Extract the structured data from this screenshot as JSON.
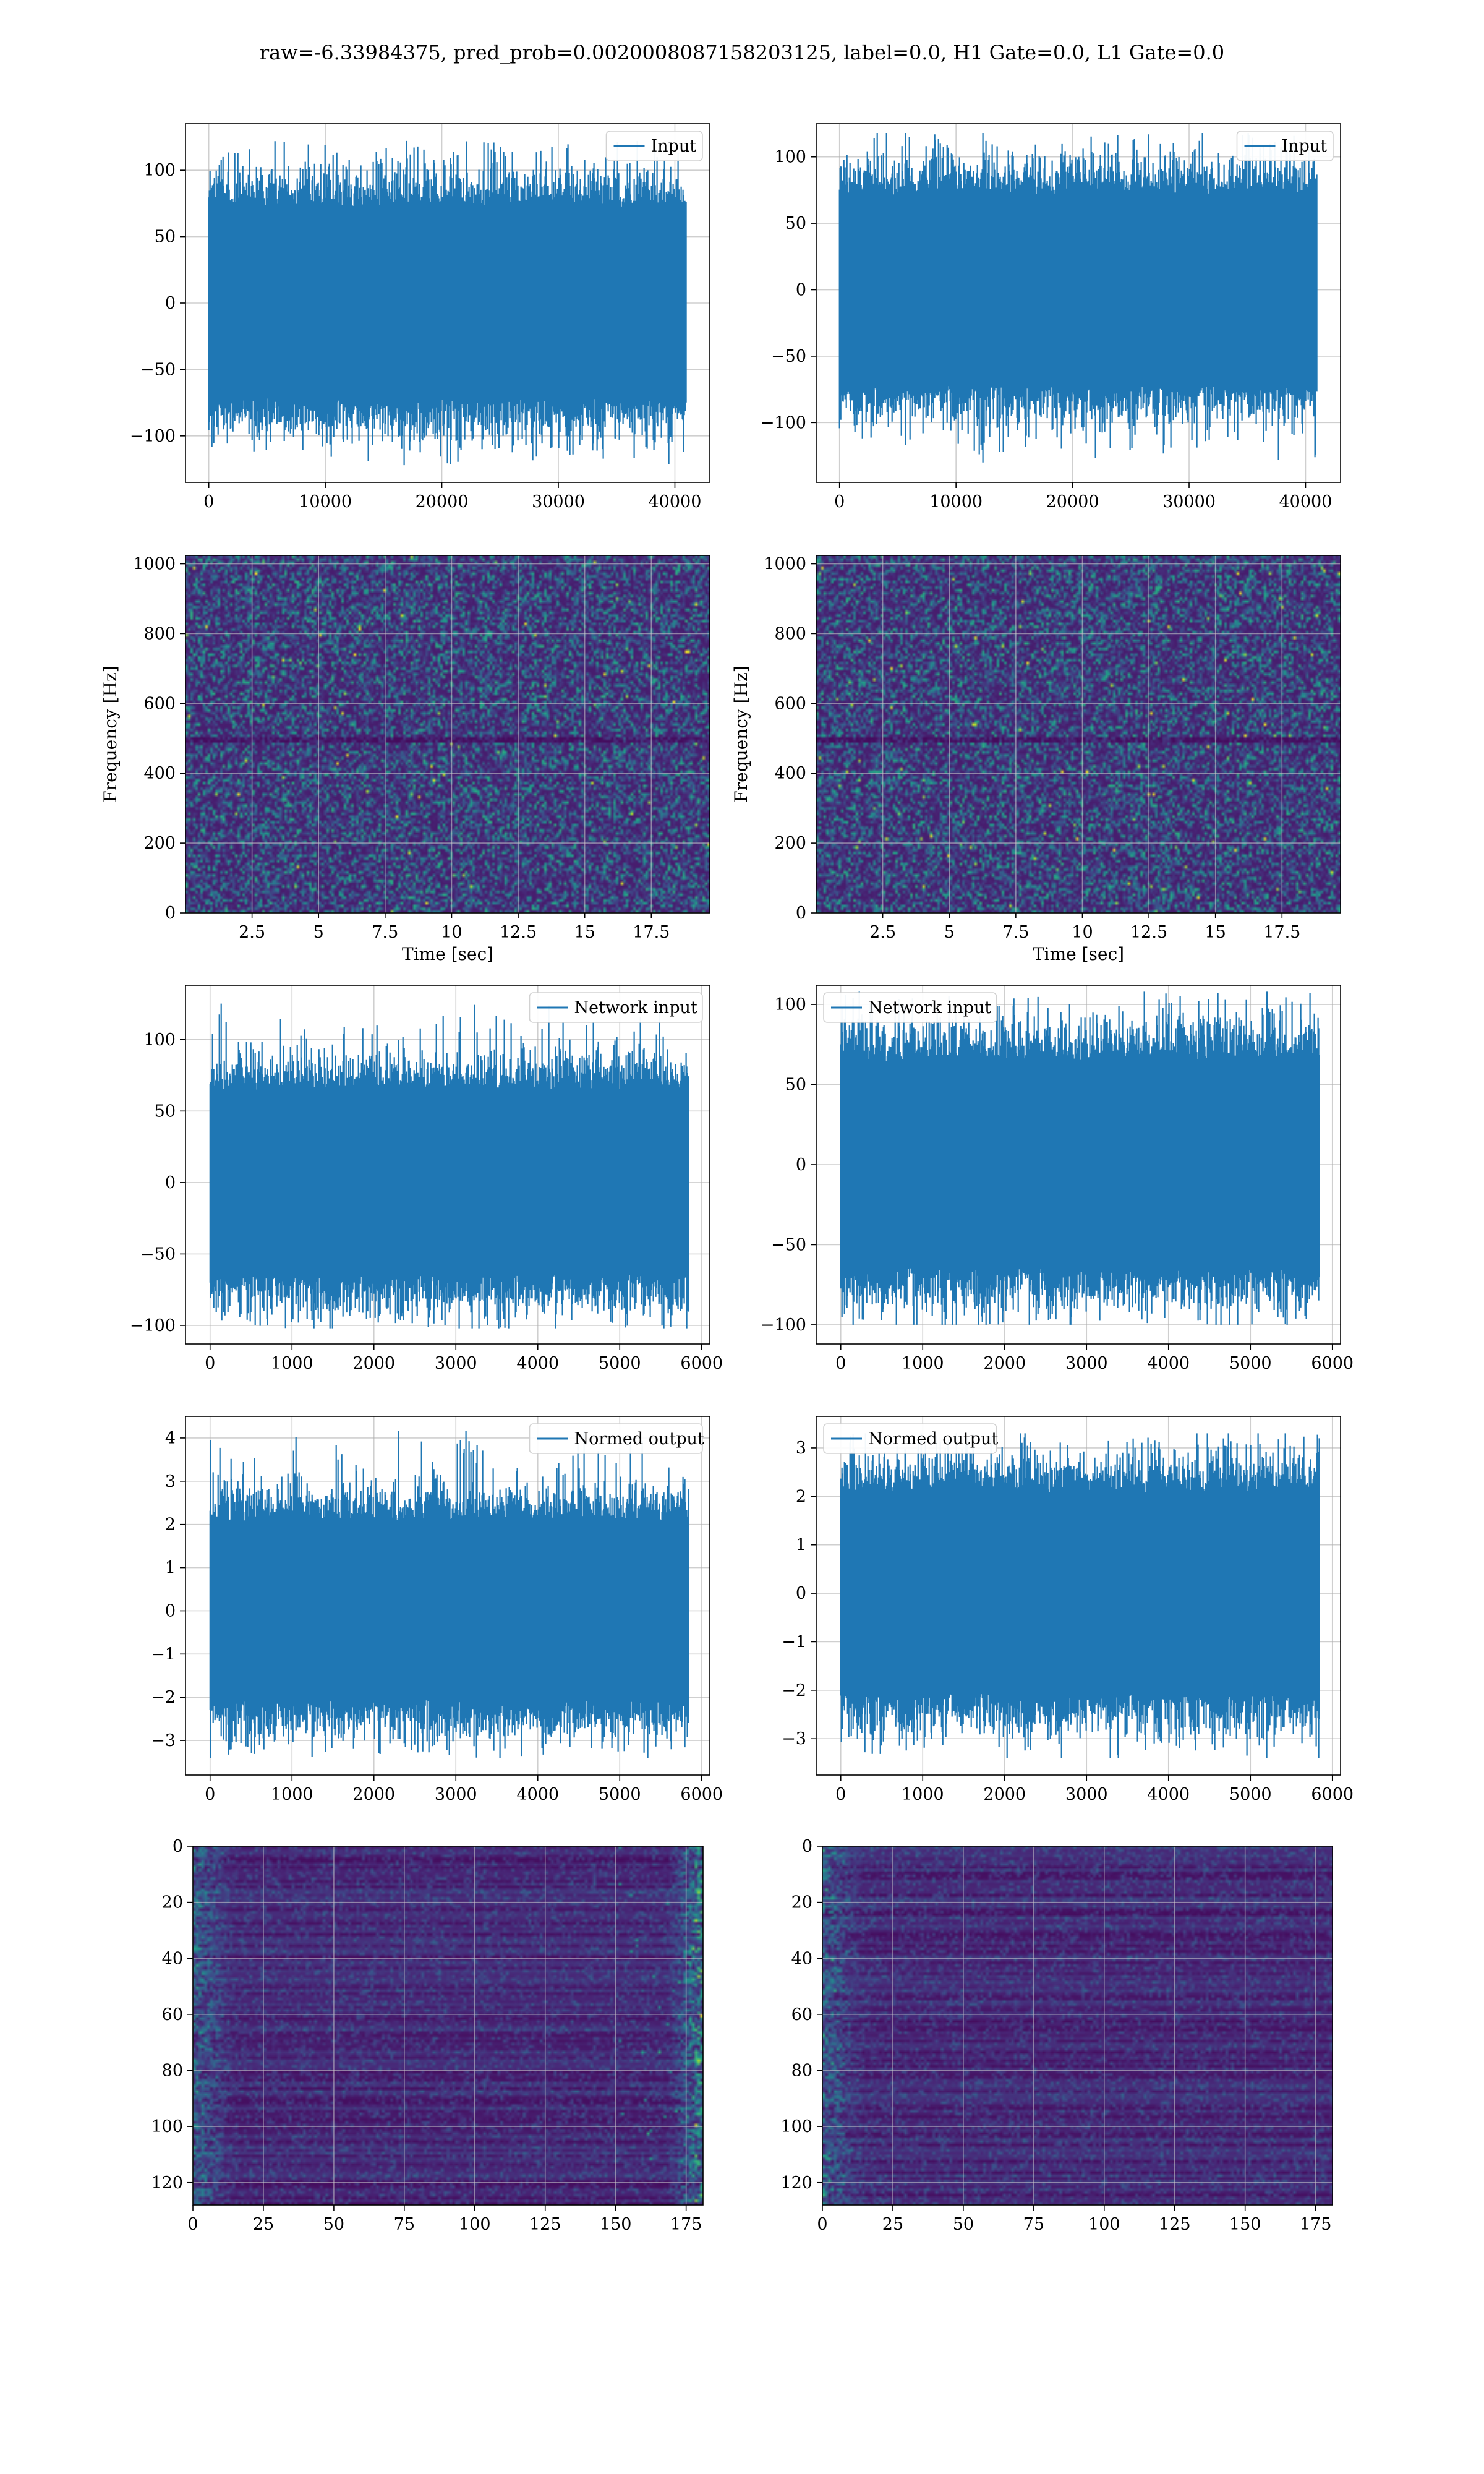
{
  "suptitle": "raw=-6.33984375, pred_prob=0.0020008087158203125, label=0.0, H1 Gate=0.0, L1 Gate=0.0",
  "colors": {
    "line": "#1f77b4",
    "grid": "#b0b0b0",
    "viridis_dark": "#440154"
  },
  "chart_data": [
    {
      "panel": "row1-left",
      "type": "line",
      "legend": [
        "Input"
      ],
      "legend_loc": "upper right",
      "xlim": [
        -2000,
        43000
      ],
      "ylim": [
        -135,
        135
      ],
      "xticks": [
        0,
        10000,
        20000,
        30000,
        40000
      ],
      "yticks": [
        -100,
        -50,
        0,
        50,
        100
      ],
      "grid": true,
      "x_range": [
        0,
        40960
      ],
      "y_envelope": [
        -122,
        122
      ],
      "series": [
        {
          "samples": 40960,
          "std": 31,
          "min": -122,
          "max": 122
        }
      ]
    },
    {
      "panel": "row1-right",
      "type": "line",
      "legend": [
        "Input"
      ],
      "legend_loc": "upper right",
      "xlim": [
        -2000,
        43000
      ],
      "ylim": [
        -145,
        125
      ],
      "xticks": [
        0,
        10000,
        20000,
        30000,
        40000
      ],
      "yticks": [
        -100,
        -50,
        0,
        50,
        100
      ],
      "grid": true,
      "x_range": [
        0,
        40960
      ],
      "y_envelope": [
        -130,
        118
      ],
      "series": [
        {
          "samples": 40960,
          "std": 31,
          "min": -130,
          "max": 118
        }
      ]
    },
    {
      "panel": "row2-left",
      "type": "heatmap",
      "xlabel": "Time [sec]",
      "ylabel": "Frequency [Hz]",
      "xlim": [
        0,
        19.7
      ],
      "ylim": [
        0,
        1024
      ],
      "xticks": [
        2.5,
        5.0,
        7.5,
        10.0,
        12.5,
        15.0,
        17.5
      ],
      "yticks": [
        0,
        200,
        400,
        600,
        800,
        1000
      ],
      "grid": true,
      "colormap": "viridis"
    },
    {
      "panel": "row2-right",
      "type": "heatmap",
      "xlabel": "Time [sec]",
      "ylabel": "Frequency [Hz]",
      "xlim": [
        0,
        19.7
      ],
      "ylim": [
        0,
        1024
      ],
      "xticks": [
        2.5,
        5.0,
        7.5,
        10.0,
        12.5,
        15.0,
        17.5
      ],
      "yticks": [
        0,
        200,
        400,
        600,
        800,
        1000
      ],
      "grid": true,
      "colormap": "viridis"
    },
    {
      "panel": "row3-left",
      "type": "line",
      "legend": [
        "Network input"
      ],
      "legend_loc": "upper right",
      "xlim": [
        -300,
        6100
      ],
      "ylim": [
        -113,
        138
      ],
      "xticks": [
        0,
        1000,
        2000,
        3000,
        4000,
        5000,
        6000
      ],
      "yticks": [
        -100,
        -50,
        0,
        50,
        100
      ],
      "grid": true,
      "x_range": [
        0,
        5840
      ],
      "y_envelope": [
        -102,
        126
      ],
      "series": [
        {
          "samples": 5840,
          "std": 28,
          "min": -102,
          "max": 126
        }
      ]
    },
    {
      "panel": "row3-right",
      "type": "line",
      "legend": [
        "Network input"
      ],
      "legend_loc": "upper left",
      "xlim": [
        -300,
        6100
      ],
      "ylim": [
        -112,
        112
      ],
      "xticks": [
        0,
        1000,
        2000,
        3000,
        4000,
        5000,
        6000
      ],
      "yticks": [
        -100,
        -50,
        0,
        50,
        100
      ],
      "grid": true,
      "x_range": [
        0,
        5840
      ],
      "y_envelope": [
        -100,
        108
      ],
      "series": [
        {
          "samples": 5840,
          "std": 28,
          "min": -100,
          "max": 108
        }
      ]
    },
    {
      "panel": "row4-left",
      "type": "line",
      "legend": [
        "Normed output"
      ],
      "legend_loc": "upper right",
      "xlim": [
        -300,
        6100
      ],
      "ylim": [
        -3.8,
        4.5
      ],
      "xticks": [
        0,
        1000,
        2000,
        3000,
        4000,
        5000,
        6000
      ],
      "yticks": [
        -3,
        -2,
        -1,
        0,
        1,
        2,
        3,
        4
      ],
      "grid": true,
      "x_range": [
        0,
        5840
      ],
      "y_envelope": [
        -3.4,
        4.2
      ],
      "series": [
        {
          "samples": 5840,
          "std": 0.9,
          "min": -3.4,
          "max": 4.2
        }
      ]
    },
    {
      "panel": "row4-right",
      "type": "line",
      "legend": [
        "Normed output"
      ],
      "legend_loc": "upper left",
      "xlim": [
        -300,
        6100
      ],
      "ylim": [
        -3.75,
        3.65
      ],
      "xticks": [
        0,
        1000,
        2000,
        3000,
        4000,
        5000,
        6000
      ],
      "yticks": [
        -3,
        -2,
        -1,
        0,
        1,
        2,
        3
      ],
      "grid": true,
      "x_range": [
        0,
        5840
      ],
      "y_envelope": [
        -3.4,
        3.3
      ],
      "series": [
        {
          "samples": 5840,
          "std": 0.9,
          "min": -3.4,
          "max": 3.3
        }
      ]
    },
    {
      "panel": "row5-left",
      "type": "heatmap",
      "colormap": "viridis",
      "xlim": [
        0,
        181
      ],
      "ylim": [
        128,
        0
      ],
      "xticks": [
        0,
        25,
        50,
        75,
        100,
        125,
        150,
        175
      ],
      "yticks": [
        0,
        20,
        40,
        60,
        80,
        100,
        120
      ],
      "grid": true
    },
    {
      "panel": "row5-right",
      "type": "heatmap",
      "colormap": "viridis",
      "xlim": [
        0,
        181
      ],
      "ylim": [
        128,
        0
      ],
      "xticks": [
        0,
        25,
        50,
        75,
        100,
        125,
        150,
        175
      ],
      "yticks": [
        0,
        20,
        40,
        60,
        80,
        100,
        120
      ],
      "grid": true
    }
  ]
}
